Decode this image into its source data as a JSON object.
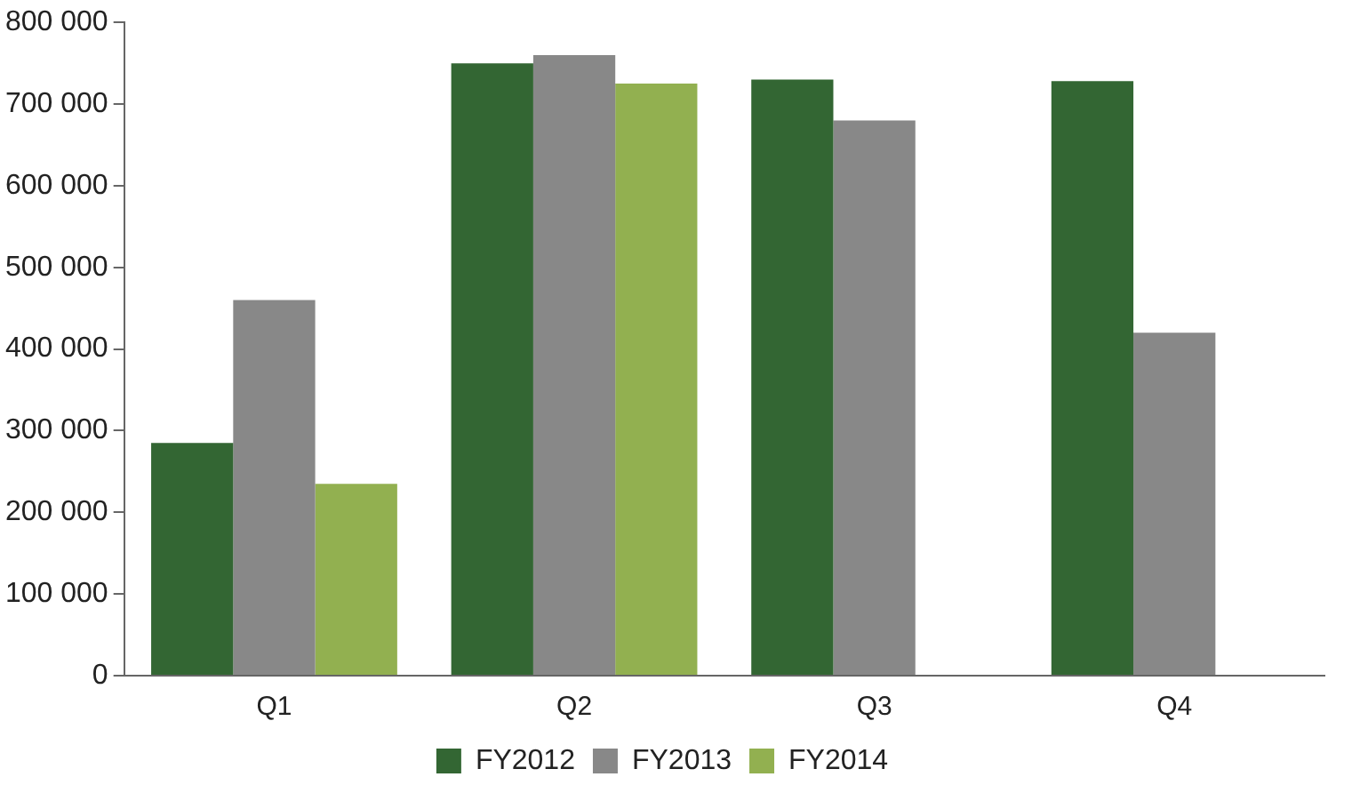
{
  "chart_data": {
    "type": "bar",
    "categories": [
      "Q1",
      "Q2",
      "Q3",
      "Q4"
    ],
    "series": [
      {
        "name": "FY2012",
        "color": "#336633",
        "values": [
          285000,
          750000,
          730000,
          728000
        ]
      },
      {
        "name": "FY2013",
        "color": "#888888",
        "values": [
          460000,
          760000,
          680000,
          420000
        ]
      },
      {
        "name": "FY2014",
        "color": "#92b050",
        "values": [
          235000,
          725000,
          null,
          null
        ]
      }
    ],
    "ylim": [
      0,
      800000
    ],
    "yticks": [
      {
        "value": 0,
        "label": "0"
      },
      {
        "value": 100000,
        "label": "100 000"
      },
      {
        "value": 200000,
        "label": "200 000"
      },
      {
        "value": 300000,
        "label": "300 000"
      },
      {
        "value": 400000,
        "label": "400 000"
      },
      {
        "value": 500000,
        "label": "500 000"
      },
      {
        "value": 600000,
        "label": "600 000"
      },
      {
        "value": 700000,
        "label": "700 000"
      },
      {
        "value": 800000,
        "label": "800 000"
      }
    ],
    "grid": false,
    "legend": "bottom"
  }
}
